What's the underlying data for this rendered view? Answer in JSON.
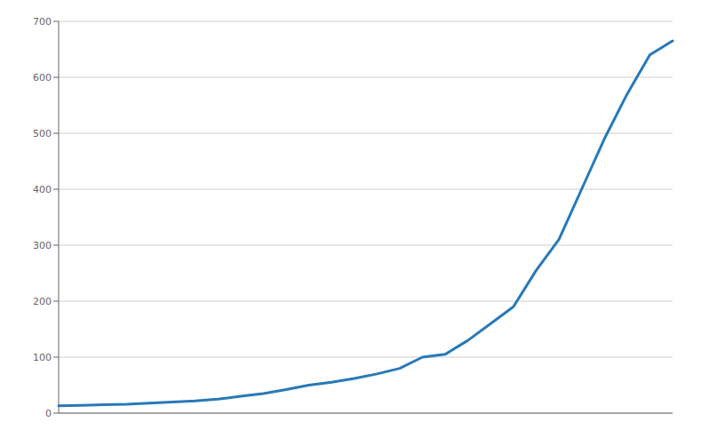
{
  "chart_data": {
    "type": "line",
    "categories": [
      null,
      null,
      null,
      null,
      null,
      null,
      null,
      null,
      null,
      null,
      null,
      null,
      null,
      null,
      null,
      null,
      null,
      null,
      null,
      null,
      null,
      null,
      null,
      null,
      null,
      null,
      null,
      null
    ],
    "values": [
      13,
      14,
      15,
      16,
      18,
      20,
      22,
      25,
      30,
      35,
      42,
      50,
      55,
      62,
      70,
      80,
      100,
      105,
      130,
      160,
      190,
      255,
      310,
      400,
      490,
      570,
      640,
      665
    ],
    "color": "#2779b9",
    "ylim": [
      0,
      700
    ],
    "yticks": [
      0,
      100,
      200,
      300,
      400,
      500,
      600,
      700
    ],
    "grid": true,
    "tick_labels": "y"
  }
}
